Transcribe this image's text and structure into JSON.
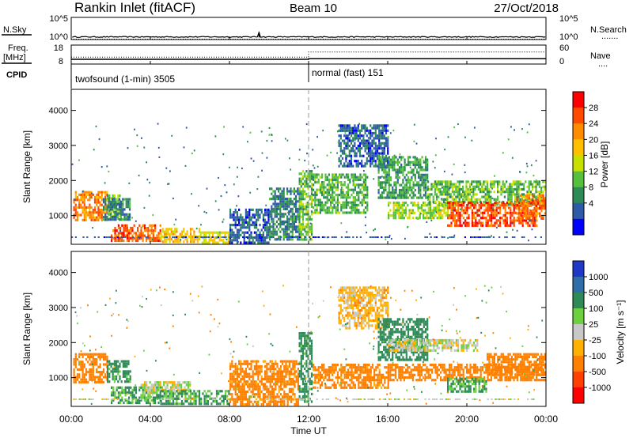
{
  "header": {
    "station": "Rankin Inlet (fitACF)",
    "beam": "Beam 10",
    "date": "27/Oct/2018"
  },
  "panels": {
    "nsky": {
      "left_label": "N.Sky",
      "left_ticks": [
        "10^5",
        "10^0"
      ],
      "right_ticks": [
        "10^5",
        "10^0"
      ],
      "right_label": "N.Search",
      "right_legend": "......."
    },
    "freq": {
      "left_label_line1": "Freq.",
      "left_label_line2": "[MHz]",
      "left_ticks": [
        "18",
        "8"
      ],
      "right_ticks": [
        "60",
        "0"
      ],
      "right_label": "Nave",
      "right_legend": "....",
      "cpid_label": "CPID"
    },
    "cpid": {
      "modes": [
        {
          "name": "twofsound (1-min) 3505"
        },
        {
          "name": "normal (fast) 151"
        }
      ]
    }
  },
  "axes": {
    "ylabel": "Slant Range [km]",
    "xlabel": "Time UT",
    "y_ticks": [
      "4000",
      "3000",
      "2000",
      "1000"
    ],
    "x_ticks": [
      "00:00",
      "04:00",
      "08:00",
      "12:00",
      "16:00",
      "20:00",
      "00:00"
    ]
  },
  "colorbars": {
    "power": {
      "title": "Power [dB]",
      "tick_labels": [
        "28",
        "24",
        "20",
        "16",
        "12",
        "8",
        "4"
      ],
      "colors": [
        "#ff0000",
        "#ff4a00",
        "#ff8c00",
        "#ffc000",
        "#c8e000",
        "#56c03c",
        "#2e8b57",
        "#2f5aa8",
        "#0000ff"
      ]
    },
    "velocity": {
      "title": "Velocity [m s⁻¹]",
      "tick_labels": [
        "1000",
        "500",
        "100",
        "25",
        "-25",
        "-100",
        "-500",
        "-1000"
      ],
      "colors": [
        "#2038c8",
        "#2f6ea8",
        "#2e8b57",
        "#6ed040",
        "#c8c8c8",
        "#ffb000",
        "#ff8000",
        "#ff4000",
        "#ff0000"
      ]
    }
  },
  "chart_data": [
    {
      "type": "line",
      "title": "N.Sky / N.Search",
      "x_range_hours": [
        0,
        24
      ],
      "ylim": [
        "10^0",
        "10^5"
      ],
      "series": [
        {
          "name": "N.Sky",
          "x": [
            0,
            2,
            4,
            6,
            8,
            9.5,
            10,
            12,
            14,
            16,
            18,
            20,
            22,
            24
          ],
          "y": [
            3,
            3,
            3,
            3,
            3,
            40,
            3,
            3,
            3,
            3,
            3,
            3,
            3,
            3
          ]
        },
        {
          "name": "N.Search",
          "x": [
            0,
            24
          ],
          "y": [
            1,
            1
          ]
        }
      ]
    },
    {
      "type": "line",
      "title": "Freq / Nave",
      "x_range_hours": [
        0,
        24
      ],
      "ylim": [
        8,
        18
      ],
      "series": [
        {
          "name": "Freq",
          "x": [
            0,
            12,
            12,
            24
          ],
          "y": [
            10.5,
            10.5,
            10.8,
            10.8
          ]
        },
        {
          "name": "Nave",
          "x": [
            0,
            12,
            12,
            24
          ],
          "y": [
            22,
            22,
            38,
            38
          ]
        }
      ]
    },
    {
      "type": "heatmap",
      "title": "Power [dB]",
      "xlabel": "",
      "ylabel": "Slant Range [km]",
      "x_range_hours": [
        0,
        24
      ],
      "ylim": [
        180,
        4600
      ],
      "blobs": [
        {
          "t": [
            0.1,
            1.8
          ],
          "r": [
            900,
            1700
          ],
          "v": 24
        },
        {
          "t": [
            1.8,
            2.5
          ],
          "r": [
            900,
            1600
          ],
          "v": 14
        },
        {
          "t": [
            1.6,
            3.0
          ],
          "r": [
            900,
            1500
          ],
          "v": 10
        },
        {
          "t": [
            2.0,
            4.5
          ],
          "r": [
            250,
            750
          ],
          "v": 26
        },
        {
          "t": [
            4.5,
            6.5
          ],
          "r": [
            220,
            650
          ],
          "v": 20
        },
        {
          "t": [
            6.5,
            8.0
          ],
          "r": [
            220,
            550
          ],
          "v": 18
        },
        {
          "t": [
            8.0,
            10.0
          ],
          "r": [
            250,
            1200
          ],
          "v": 8
        },
        {
          "t": [
            10.0,
            11.5
          ],
          "r": [
            300,
            1800
          ],
          "v": 10
        },
        {
          "t": [
            11.5,
            12.2
          ],
          "r": [
            300,
            2300
          ],
          "v": 14
        },
        {
          "t": [
            12.2,
            15.0
          ],
          "r": [
            1100,
            2200
          ],
          "v": 13
        },
        {
          "t": [
            13.5,
            16.0
          ],
          "r": [
            2400,
            3600
          ],
          "v": 8
        },
        {
          "t": [
            15.5,
            18.0
          ],
          "r": [
            1500,
            2700
          ],
          "v": 12
        },
        {
          "t": [
            16.0,
            19.0
          ],
          "r": [
            900,
            1400
          ],
          "v": 16
        },
        {
          "t": [
            18.0,
            24.0
          ],
          "r": [
            1300,
            2000
          ],
          "v": 14
        },
        {
          "t": [
            19.0,
            23.5
          ],
          "r": [
            700,
            1400
          ],
          "v": 27
        },
        {
          "t": [
            22.5,
            24.0
          ],
          "r": [
            900,
            1600
          ],
          "v": 25
        }
      ]
    },
    {
      "type": "heatmap",
      "title": "Velocity [m s⁻¹]",
      "xlabel": "Time UT",
      "ylabel": "Slant Range [km]",
      "x_range_hours": [
        0,
        24
      ],
      "ylim": [
        180,
        4600
      ],
      "blobs": [
        {
          "t": [
            0.1,
            1.8
          ],
          "r": [
            900,
            1700
          ],
          "v": -200
        },
        {
          "t": [
            1.8,
            3.0
          ],
          "r": [
            900,
            1500
          ],
          "v": 150
        },
        {
          "t": [
            2.0,
            4.5
          ],
          "r": [
            250,
            750
          ],
          "v": 110
        },
        {
          "t": [
            3.5,
            6.0
          ],
          "r": [
            600,
            900
          ],
          "v": 0
        },
        {
          "t": [
            4.5,
            8.0
          ],
          "r": [
            220,
            650
          ],
          "v": 120
        },
        {
          "t": [
            8.0,
            11.5
          ],
          "r": [
            250,
            1500
          ],
          "v": -150
        },
        {
          "t": [
            11.5,
            12.2
          ],
          "r": [
            300,
            2300
          ],
          "v": 150
        },
        {
          "t": [
            12.2,
            16.0
          ],
          "r": [
            700,
            1400
          ],
          "v": -150
        },
        {
          "t": [
            13.5,
            16.0
          ],
          "r": [
            2400,
            3600
          ],
          "v": -60
        },
        {
          "t": [
            15.5,
            18.0
          ],
          "r": [
            1500,
            2700
          ],
          "v": 200
        },
        {
          "t": [
            16.0,
            20.5
          ],
          "r": [
            1800,
            2100
          ],
          "v": 0
        },
        {
          "t": [
            16.0,
            24.0
          ],
          "r": [
            900,
            1400
          ],
          "v": -250
        },
        {
          "t": [
            19.0,
            21.0
          ],
          "r": [
            600,
            1000
          ],
          "v": 110
        },
        {
          "t": [
            21.0,
            24.0
          ],
          "r": [
            1100,
            1700
          ],
          "v": -300
        }
      ]
    }
  ]
}
